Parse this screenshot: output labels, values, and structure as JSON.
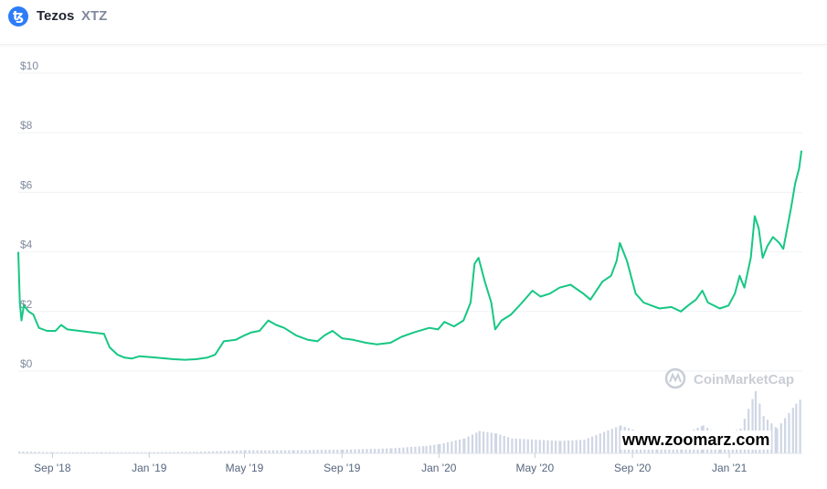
{
  "header": {
    "coin_name": "Tezos",
    "coin_symbol": "XTZ",
    "icon": "tezos-logo-icon"
  },
  "watermarks": {
    "brand": "CoinMarketCap",
    "brand_icon": "coinmarketcap-logo-icon",
    "site": "www.zoomarz.com"
  },
  "colors": {
    "price_line": "#16c784",
    "volume_bars": "#cfd6e4",
    "grid": "#eff2f5",
    "icon_bg": "#2c7df7"
  },
  "chart_data": {
    "type": "line",
    "y_ticks": [
      "$10",
      "$8",
      "$6",
      "$4",
      "$2",
      "$0"
    ],
    "y_tick_values": [
      10,
      8,
      6,
      4,
      2,
      0
    ],
    "ylim": [
      0,
      10
    ],
    "x_ticks": [
      "Sep '18",
      "Jan '19",
      "May '19",
      "Sep '19",
      "Jan '20",
      "May '20",
      "Sep '20",
      "Jan '21"
    ],
    "x_tick_dates": [
      "2018-09-01",
      "2019-01-01",
      "2019-05-01",
      "2019-09-01",
      "2020-01-01",
      "2020-05-01",
      "2020-09-01",
      "2021-01-01"
    ],
    "xlim": [
      "2018-07-20",
      "2021-04-03"
    ],
    "grid": true,
    "series": [
      {
        "values": [
          [
            "2018-07-20",
            4.0
          ],
          [
            "2018-07-22",
            2.3
          ],
          [
            "2018-07-24",
            1.7
          ],
          [
            "2018-07-27",
            2.2
          ],
          [
            "2018-08-02",
            2.0
          ],
          [
            "2018-08-08",
            1.9
          ],
          [
            "2018-08-15",
            1.45
          ],
          [
            "2018-08-25",
            1.35
          ],
          [
            "2018-09-05",
            1.35
          ],
          [
            "2018-09-12",
            1.55
          ],
          [
            "2018-09-20",
            1.4
          ],
          [
            "2018-10-05",
            1.35
          ],
          [
            "2018-10-20",
            1.3
          ],
          [
            "2018-11-05",
            1.25
          ],
          [
            "2018-11-12",
            0.8
          ],
          [
            "2018-11-22",
            0.55
          ],
          [
            "2018-12-01",
            0.45
          ],
          [
            "2018-12-10",
            0.42
          ],
          [
            "2018-12-20",
            0.5
          ],
          [
            "2019-01-10",
            0.45
          ],
          [
            "2019-02-01",
            0.4
          ],
          [
            "2019-02-15",
            0.38
          ],
          [
            "2019-03-01",
            0.4
          ],
          [
            "2019-03-15",
            0.45
          ],
          [
            "2019-03-25",
            0.55
          ],
          [
            "2019-04-05",
            1.0
          ],
          [
            "2019-04-20",
            1.05
          ],
          [
            "2019-05-01",
            1.2
          ],
          [
            "2019-05-10",
            1.3
          ],
          [
            "2019-05-20",
            1.35
          ],
          [
            "2019-05-31",
            1.7
          ],
          [
            "2019-06-10",
            1.55
          ],
          [
            "2019-06-20",
            1.45
          ],
          [
            "2019-07-05",
            1.2
          ],
          [
            "2019-07-20",
            1.05
          ],
          [
            "2019-08-01",
            1.0
          ],
          [
            "2019-08-10",
            1.2
          ],
          [
            "2019-08-20",
            1.35
          ],
          [
            "2019-09-01",
            1.1
          ],
          [
            "2019-09-15",
            1.05
          ],
          [
            "2019-10-01",
            0.95
          ],
          [
            "2019-10-15",
            0.9
          ],
          [
            "2019-11-01",
            0.95
          ],
          [
            "2019-11-15",
            1.15
          ],
          [
            "2019-12-01",
            1.3
          ],
          [
            "2019-12-20",
            1.45
          ],
          [
            "2019-12-31",
            1.4
          ],
          [
            "2020-01-08",
            1.65
          ],
          [
            "2020-01-20",
            1.5
          ],
          [
            "2020-02-01",
            1.7
          ],
          [
            "2020-02-10",
            2.3
          ],
          [
            "2020-02-15",
            3.6
          ],
          [
            "2020-02-20",
            3.8
          ],
          [
            "2020-02-28",
            3.0
          ],
          [
            "2020-03-07",
            2.3
          ],
          [
            "2020-03-12",
            1.4
          ],
          [
            "2020-03-20",
            1.7
          ],
          [
            "2020-04-01",
            1.9
          ],
          [
            "2020-04-15",
            2.3
          ],
          [
            "2020-04-28",
            2.7
          ],
          [
            "2020-05-08",
            2.5
          ],
          [
            "2020-05-20",
            2.6
          ],
          [
            "2020-06-01",
            2.8
          ],
          [
            "2020-06-15",
            2.9
          ],
          [
            "2020-07-01",
            2.6
          ],
          [
            "2020-07-10",
            2.4
          ],
          [
            "2020-07-25",
            3.0
          ],
          [
            "2020-08-05",
            3.2
          ],
          [
            "2020-08-12",
            3.7
          ],
          [
            "2020-08-16",
            4.3
          ],
          [
            "2020-08-25",
            3.7
          ],
          [
            "2020-09-05",
            2.6
          ],
          [
            "2020-09-15",
            2.3
          ],
          [
            "2020-09-25",
            2.2
          ],
          [
            "2020-10-05",
            2.1
          ],
          [
            "2020-10-20",
            2.15
          ],
          [
            "2020-11-01",
            2.0
          ],
          [
            "2020-11-10",
            2.2
          ],
          [
            "2020-11-20",
            2.4
          ],
          [
            "2020-11-28",
            2.7
          ],
          [
            "2020-12-05",
            2.3
          ],
          [
            "2020-12-20",
            2.1
          ],
          [
            "2020-12-31",
            2.2
          ],
          [
            "2021-01-08",
            2.6
          ],
          [
            "2021-01-14",
            3.2
          ],
          [
            "2021-01-20",
            2.8
          ],
          [
            "2021-01-28",
            3.8
          ],
          [
            "2021-02-02",
            5.2
          ],
          [
            "2021-02-07",
            4.8
          ],
          [
            "2021-02-12",
            3.8
          ],
          [
            "2021-02-18",
            4.2
          ],
          [
            "2021-02-25",
            4.5
          ],
          [
            "2021-03-05",
            4.3
          ],
          [
            "2021-03-10",
            4.1
          ],
          [
            "2021-03-15",
            4.8
          ],
          [
            "2021-03-20",
            5.5
          ],
          [
            "2021-03-25",
            6.3
          ],
          [
            "2021-03-30",
            6.8
          ],
          [
            "2021-04-02",
            7.4
          ]
        ]
      }
    ],
    "volume": {
      "values": [
        [
          "2018-07-20",
          0.3
        ],
        [
          "2018-09-01",
          0.2
        ],
        [
          "2018-11-01",
          0.2
        ],
        [
          "2019-01-01",
          0.2
        ],
        [
          "2019-03-01",
          0.25
        ],
        [
          "2019-05-01",
          0.5
        ],
        [
          "2019-07-01",
          0.5
        ],
        [
          "2019-09-01",
          0.6
        ],
        [
          "2019-11-01",
          0.8
        ],
        [
          "2019-12-15",
          1.2
        ],
        [
          "2020-01-01",
          1.5
        ],
        [
          "2020-02-01",
          2.4
        ],
        [
          "2020-02-20",
          3.6
        ],
        [
          "2020-03-12",
          3.2
        ],
        [
          "2020-04-01",
          2.4
        ],
        [
          "2020-05-01",
          2.2
        ],
        [
          "2020-06-01",
          2.0
        ],
        [
          "2020-07-01",
          2.2
        ],
        [
          "2020-08-16",
          4.5
        ],
        [
          "2020-09-05",
          3.6
        ],
        [
          "2020-10-01",
          2.0
        ],
        [
          "2020-11-01",
          3.0
        ],
        [
          "2020-11-28",
          4.5
        ],
        [
          "2020-12-20",
          2.8
        ],
        [
          "2021-01-14",
          4.0
        ],
        [
          "2021-02-02",
          10.0
        ],
        [
          "2021-02-12",
          6.0
        ],
        [
          "2021-03-01",
          4.0
        ],
        [
          "2021-03-25",
          8.0
        ],
        [
          "2021-04-02",
          9.0
        ]
      ]
    }
  }
}
